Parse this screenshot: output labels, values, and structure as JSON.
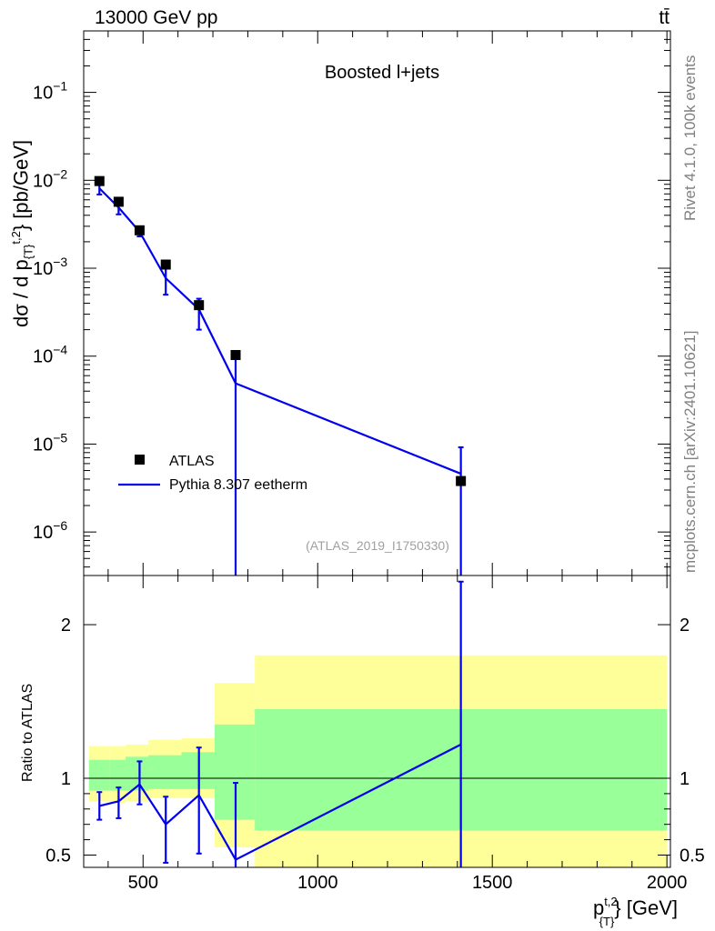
{
  "header": {
    "left_title": "13000 GeV pp",
    "right_title": "tt̄"
  },
  "chart_data": [
    {
      "type": "scatter",
      "title": "Boosted l+jets",
      "ylabel": "dσ / d p_{T}^{t,2} [pb/GeV]",
      "ylabel_parts": {
        "pre": "dσ / d p",
        "sub": "{T}",
        "sup": "t,2",
        "post": "} [pb/GeV]"
      },
      "yscale": "log",
      "ylim": [
        3.2e-07,
        0.5
      ],
      "xlim": [
        330,
        2010
      ],
      "ytick_labels": [
        {
          "value": 1e-06,
          "base": "10",
          "exp": "−6"
        },
        {
          "value": 1e-05,
          "base": "10",
          "exp": "−5"
        },
        {
          "value": 0.0001,
          "base": "10",
          "exp": "−4"
        },
        {
          "value": 0.001,
          "base": "10",
          "exp": "−3"
        },
        {
          "value": 0.01,
          "base": "10",
          "exp": "−2"
        },
        {
          "value": 0.1,
          "base": "10",
          "exp": "−1"
        }
      ],
      "legend_position": "bottom-left",
      "analysis_label": "(ATLAS_2019_I1750330)",
      "colors": {
        "data": "#000000",
        "mc": "#0000ee",
        "analysis_label": "#a0a0a0"
      },
      "series": [
        {
          "name": "ATLAS",
          "kind": "markers",
          "points": [
            {
              "x": 375,
              "y": 0.0098
            },
            {
              "x": 430,
              "y": 0.0057
            },
            {
              "x": 490,
              "y": 0.0027
            },
            {
              "x": 565,
              "y": 0.0011
            },
            {
              "x": 660,
              "y": 0.00038
            },
            {
              "x": 765,
              "y": 0.000103
            },
            {
              "x": 1410,
              "y": 3.8e-06
            }
          ]
        },
        {
          "name": "Pythia 8.307 eetherm",
          "kind": "line",
          "points": [
            {
              "x": 375,
              "y": 0.0081,
              "lo": 0.0069,
              "hi": 0.0093
            },
            {
              "x": 430,
              "y": 0.0049,
              "lo": 0.0041,
              "hi": 0.0057
            },
            {
              "x": 490,
              "y": 0.0026,
              "lo": 0.0023,
              "hi": 0.0029
            },
            {
              "x": 565,
              "y": 0.00077,
              "lo": 0.0005,
              "hi": 0.00104
            },
            {
              "x": 660,
              "y": 0.00034,
              "lo": 0.0002,
              "hi": 0.00045
            },
            {
              "x": 765,
              "y": 4.9e-05,
              "lo": 3e-07,
              "hi": 0.000103
            },
            {
              "x": 1410,
              "y": 4.6e-06,
              "lo": 3e-07,
              "hi": 9.2e-06
            }
          ]
        }
      ]
    },
    {
      "type": "line",
      "ylabel": "Ratio to ATLAS",
      "xlabel": "p_{T}^{t,2} [GeV]",
      "xlabel_parts": {
        "pre": "p",
        "sub": "{T}",
        "sup": "t,2",
        "post": "} [GeV]"
      },
      "xlim": [
        330,
        2010
      ],
      "ylim": [
        0.42,
        2.32
      ],
      "x_ticks": [
        500,
        1000,
        1500,
        2000
      ],
      "y_ticks": [
        0.5,
        1,
        2
      ],
      "x_tick_labels": [
        "500",
        "1000",
        "1500",
        "2000"
      ],
      "y_tick_labels": [
        "0.5",
        "1",
        "2"
      ],
      "reference_line": 1.0,
      "bands": {
        "colors": {
          "outer": "#ffff99",
          "inner": "#99ff99"
        },
        "bins": [
          {
            "x0": 345,
            "x1": 405,
            "outer": [
              0.85,
              1.21
            ],
            "inner": [
              0.92,
              1.12
            ]
          },
          {
            "x0": 405,
            "x1": 450,
            "outer": [
              0.84,
              1.21
            ],
            "inner": [
              0.92,
              1.12
            ]
          },
          {
            "x0": 450,
            "x1": 515,
            "outer": [
              0.85,
              1.22
            ],
            "inner": [
              0.92,
              1.14
            ]
          },
          {
            "x0": 515,
            "x1": 610,
            "outer": [
              0.87,
              1.25
            ],
            "inner": [
              0.93,
              1.15
            ]
          },
          {
            "x0": 610,
            "x1": 705,
            "outer": [
              0.87,
              1.26
            ],
            "inner": [
              0.93,
              1.17
            ]
          },
          {
            "x0": 705,
            "x1": 820,
            "outer": [
              0.55,
              1.62
            ],
            "inner": [
              0.73,
              1.35
            ]
          },
          {
            "x0": 820,
            "x1": 2000,
            "outer": [
              0.42,
              1.8
            ],
            "inner": [
              0.66,
              1.45
            ]
          }
        ]
      },
      "series": [
        {
          "name": "Pythia 8.307 eetherm",
          "points": [
            {
              "x": 375,
              "y": 0.82,
              "lo": 0.73,
              "hi": 0.91
            },
            {
              "x": 430,
              "y": 0.85,
              "lo": 0.74,
              "hi": 0.94
            },
            {
              "x": 490,
              "y": 0.96,
              "lo": 0.83,
              "hi": 1.11
            },
            {
              "x": 565,
              "y": 0.7,
              "lo": 0.45,
              "hi": 0.88
            },
            {
              "x": 660,
              "y": 0.89,
              "lo": 0.51,
              "hi": 1.2
            },
            {
              "x": 765,
              "y": 0.47,
              "lo": 0.35,
              "hi": 0.97
            },
            {
              "x": 1410,
              "y": 1.22,
              "lo": 0.35,
              "hi": 2.28
            }
          ]
        }
      ]
    }
  ],
  "side_notes": {
    "rivet": "Rivet 4.1.0,  100k events",
    "mcplots": "mcplots.cern.ch [arXiv:2401.10621]"
  }
}
